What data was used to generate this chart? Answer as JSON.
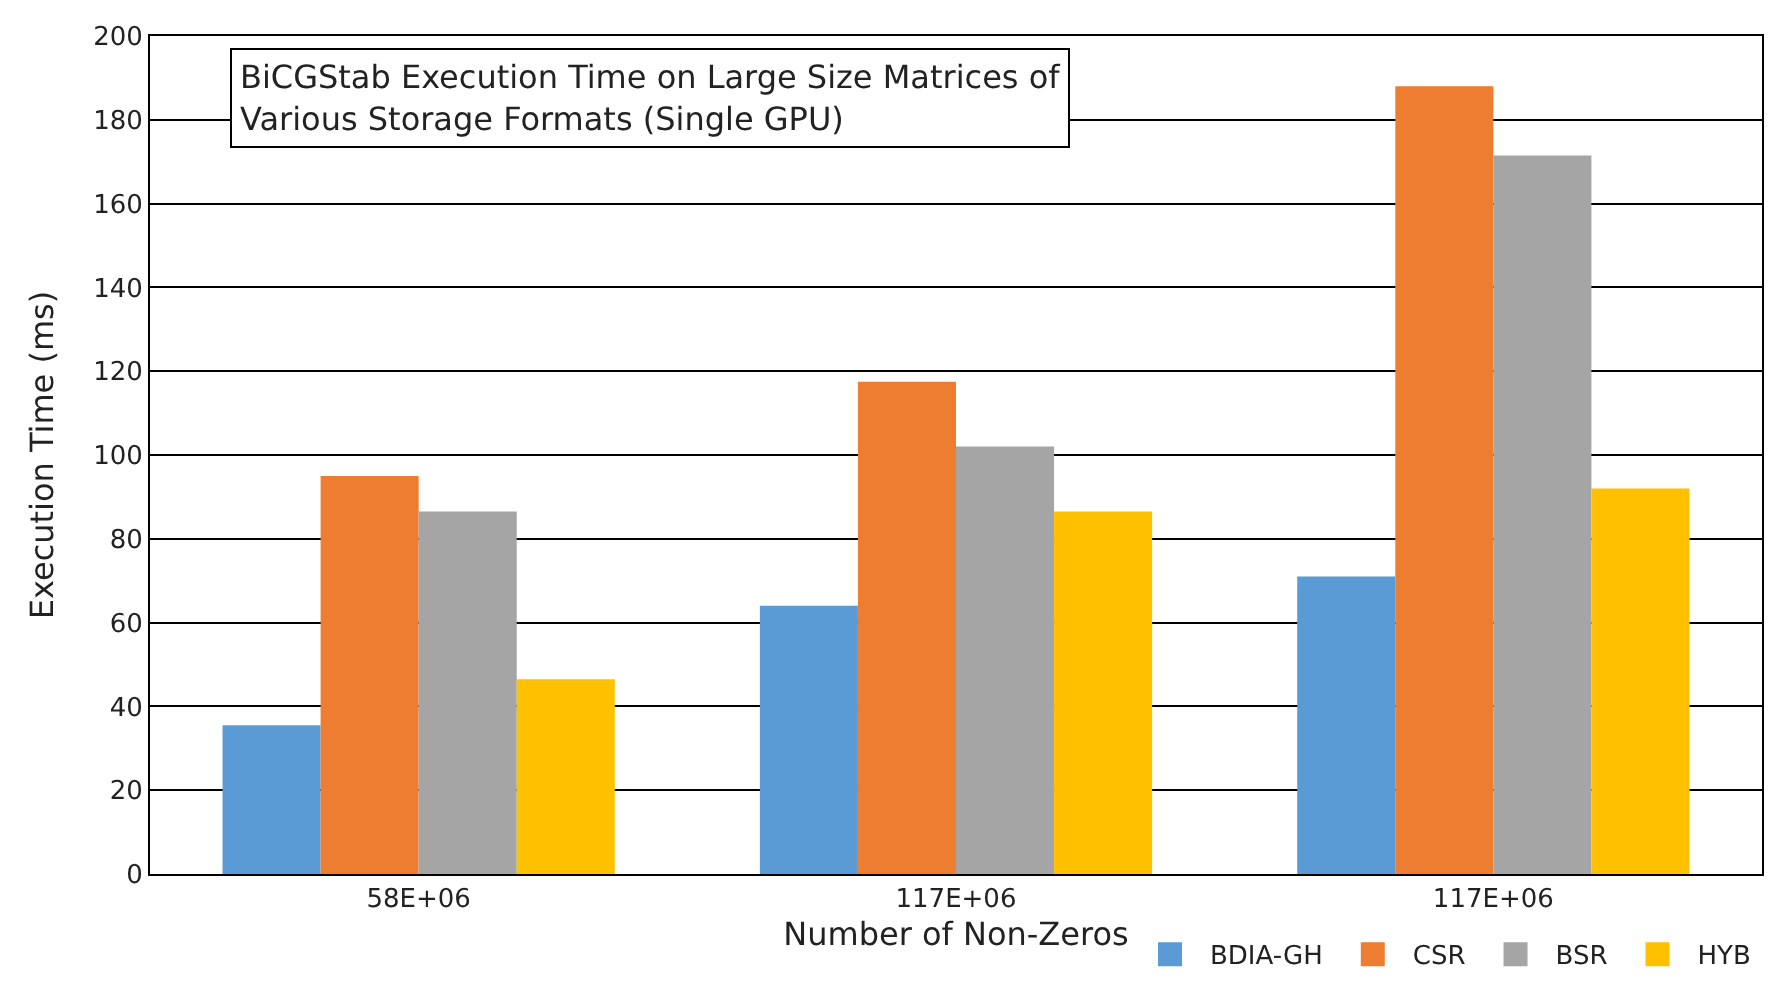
{
  "chart_data": {
    "type": "bar",
    "title": "BiCGStab Execution Time on Large Size Matrices of\nVarious Storage Formats (Single GPU)",
    "xlabel": "Number of Non-Zeros",
    "ylabel": "Execution Time (ms)",
    "categories": [
      "58E+06",
      "117E+06",
      "117E+06"
    ],
    "series": [
      {
        "name": "BDIA-GH",
        "color": "#5b9bd5",
        "values": [
          35.5,
          64,
          71
        ]
      },
      {
        "name": "CSR",
        "color": "#ed7d31",
        "values": [
          95,
          117.5,
          188
        ]
      },
      {
        "name": "BSR",
        "color": "#a5a5a5",
        "values": [
          86.5,
          102,
          171.5
        ]
      },
      {
        "name": "HYB",
        "color": "#ffc000",
        "values": [
          46.5,
          86.5,
          92
        ]
      }
    ],
    "ylim": [
      0,
      200
    ],
    "yticks": [
      0,
      20,
      40,
      60,
      80,
      100,
      120,
      140,
      160,
      180,
      200
    ],
    "grid": "y",
    "legend": "bottom right"
  }
}
